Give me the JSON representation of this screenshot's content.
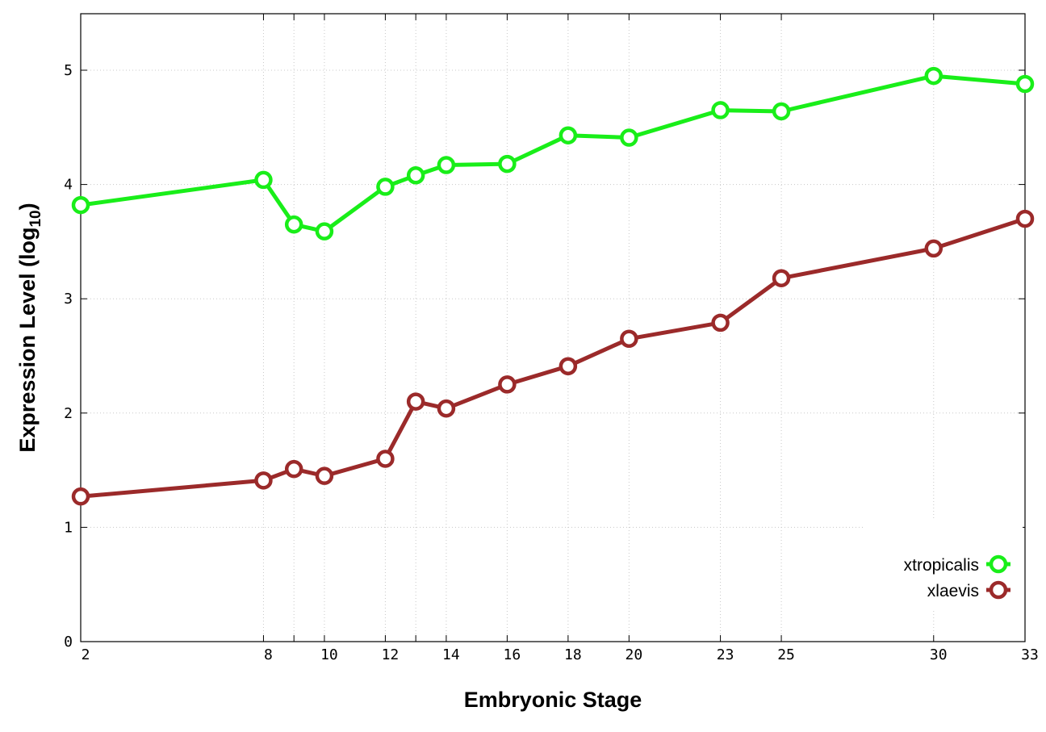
{
  "chart_data": {
    "type": "line",
    "xlabel": "Embryonic Stage",
    "ylabel_main": "Expression Level (log",
    "ylabel_sub": "10",
    "ylabel_close": ")",
    "x_categories": [
      "2",
      "8",
      "9",
      "10",
      "12",
      "13",
      "14",
      "16",
      "18",
      "20",
      "23",
      "25",
      "30",
      "33"
    ],
    "x_tick_labels": [
      "2",
      "8",
      "10",
      "12",
      "14",
      "16",
      "18",
      "20",
      "23",
      "25",
      "30",
      "33"
    ],
    "x_positions": [
      2,
      8,
      9,
      10,
      12,
      13,
      14,
      16,
      18,
      20,
      23,
      25,
      30,
      33
    ],
    "xlim": [
      2,
      33
    ],
    "ylim": [
      0,
      5.5
    ],
    "y_ticks": [
      0,
      1,
      2,
      3,
      4,
      5
    ],
    "grid": true,
    "legend_position": "bottom-right",
    "series": [
      {
        "name": "xtropicalis",
        "color": "#19ee19",
        "values": [
          3.82,
          4.04,
          3.65,
          3.59,
          3.98,
          4.08,
          4.17,
          4.18,
          4.43,
          4.41,
          4.65,
          4.64,
          4.95,
          4.88
        ]
      },
      {
        "name": "xlaevis",
        "color": "#9b2a2a",
        "values": [
          1.27,
          1.41,
          1.51,
          1.45,
          1.6,
          2.1,
          2.04,
          2.25,
          2.41,
          2.65,
          2.79,
          3.18,
          3.44,
          3.7
        ]
      }
    ]
  }
}
